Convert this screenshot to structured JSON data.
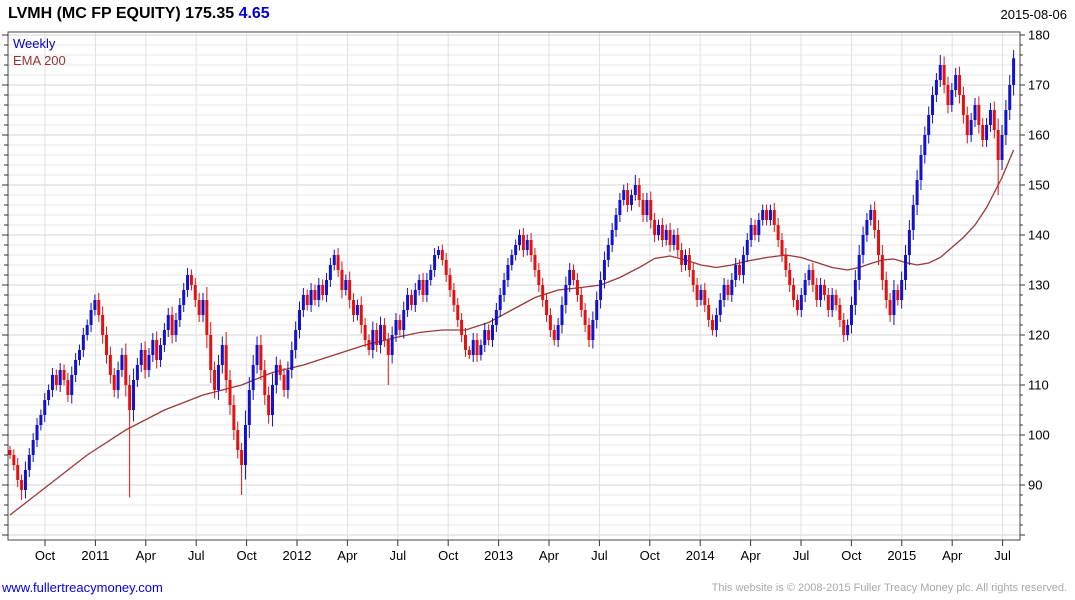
{
  "header": {
    "title_main": "LVMH (MC FP EQUITY) 175.35 ",
    "title_change": "4.65",
    "date": "2015-08-06"
  },
  "legend": {
    "series1": "Weekly",
    "series2": "EMA 200"
  },
  "footer": {
    "link": "www.fullertreacymoney.com",
    "copyright": "This website is © 2008-2015 Fuller Treacy Money plc. All rights reserved."
  },
  "colors": {
    "up": "#1212cc",
    "down": "#e01212",
    "ema": "#993838",
    "grid_minor": "#e7e7e7",
    "grid_major": "#d4d4d4",
    "grid_vert": "#e0e0e0",
    "frame": "#444444",
    "tick": "#333333",
    "axis_text": "#000000"
  },
  "chart_data": {
    "type": "candlestick",
    "title": "LVMH (MC FP EQUITY)",
    "last_price": 175.35,
    "change": 4.65,
    "as_of": "2015-08-06",
    "interval": "Weekly",
    "overlay": "EMA 200",
    "period_start": "2010-08",
    "period_end": "2015-08",
    "y_axis": {
      "position": "right",
      "min": 79,
      "max": 180.6,
      "tick_major": 10,
      "tick_minor": 2,
      "labels": [
        180,
        170,
        160,
        150,
        140,
        130,
        120,
        110,
        100,
        90
      ]
    },
    "x_axis": {
      "labels": [
        "Oct",
        "2011",
        "Apr",
        "Jul",
        "Oct",
        "2012",
        "Apr",
        "Jul",
        "Oct",
        "2013",
        "Apr",
        "Jul",
        "Oct",
        "2014",
        "Apr",
        "Jul",
        "Oct",
        "2015",
        "Apr",
        "Jul"
      ]
    },
    "first_open": 97,
    "closes": [
      96,
      94,
      91,
      89,
      93,
      96,
      99,
      102,
      104,
      107,
      109,
      112,
      110,
      113,
      111,
      108,
      112,
      115,
      117,
      120,
      122,
      125,
      127,
      124,
      120,
      116,
      112,
      109,
      113,
      116,
      110,
      105,
      111,
      114,
      117,
      113,
      116,
      119,
      115,
      118,
      121,
      124,
      120,
      123,
      126,
      129,
      132,
      130,
      127,
      124,
      127,
      120,
      113,
      109,
      114,
      118,
      111,
      106,
      101,
      97,
      94,
      102,
      109,
      114,
      118,
      113,
      108,
      104,
      110,
      114,
      112,
      109,
      113,
      117,
      121,
      125,
      128,
      126,
      129,
      127,
      130,
      128,
      131,
      134,
      136,
      133,
      129,
      131,
      127,
      124,
      126,
      122,
      119,
      117,
      121,
      118,
      122,
      119,
      116,
      120,
      123,
      121,
      125,
      128,
      126,
      129,
      131,
      128,
      131,
      133,
      136,
      137,
      135,
      132,
      129,
      126,
      123,
      120,
      117,
      116,
      119,
      116,
      118,
      121,
      119,
      122,
      125,
      128,
      131,
      134,
      136,
      138,
      140,
      137,
      139,
      136,
      133,
      130,
      127,
      124,
      121,
      119,
      122,
      126,
      130,
      133,
      131,
      128,
      125,
      122,
      119,
      123,
      127,
      131,
      135,
      138,
      141,
      144,
      147,
      149,
      146,
      148,
      150,
      147,
      144,
      147,
      143,
      140,
      142,
      139,
      141,
      138,
      140,
      137,
      134,
      136,
      133,
      130,
      127,
      129,
      126,
      123,
      121,
      124,
      127,
      130,
      128,
      131,
      134,
      132,
      136,
      139,
      142,
      140,
      143,
      145,
      143,
      145,
      142,
      139,
      136,
      133,
      130,
      127,
      125,
      128,
      131,
      133,
      130,
      127,
      130,
      128,
      125,
      128,
      126,
      123,
      120,
      122,
      126,
      131,
      136,
      140,
      143,
      145,
      141,
      136,
      131,
      127,
      124,
      129,
      127,
      131,
      136,
      141,
      146,
      151,
      156,
      160,
      164,
      168,
      171,
      174,
      170,
      166,
      169,
      172,
      168,
      164,
      160,
      163,
      166,
      162,
      159,
      162,
      165,
      161,
      155,
      160,
      165,
      170,
      175.35
    ],
    "wick_overrides": {
      "3": {
        "low": 87
      },
      "31": {
        "low": 87.5
      },
      "60": {
        "low": 88
      },
      "98": {
        "low": 110
      },
      "162": {
        "high": 152
      },
      "241": {
        "high": 176
      },
      "256": {
        "low": 148
      },
      "260": {
        "high": 177
      }
    },
    "ema200_points": [
      [
        0,
        84
      ],
      [
        10,
        90
      ],
      [
        20,
        96
      ],
      [
        30,
        101
      ],
      [
        40,
        105
      ],
      [
        50,
        108
      ],
      [
        60,
        110
      ],
      [
        68,
        112.5
      ],
      [
        76,
        114
      ],
      [
        84,
        116
      ],
      [
        92,
        118
      ],
      [
        100,
        119.5
      ],
      [
        106,
        120.5
      ],
      [
        112,
        121
      ],
      [
        118,
        121
      ],
      [
        124,
        122.5
      ],
      [
        130,
        125
      ],
      [
        136,
        127.5
      ],
      [
        142,
        129
      ],
      [
        148,
        129.5
      ],
      [
        153,
        130
      ],
      [
        158,
        131.5
      ],
      [
        163,
        133.5
      ],
      [
        167,
        135.3
      ],
      [
        171,
        135.8
      ],
      [
        175,
        135
      ],
      [
        179,
        134
      ],
      [
        183,
        133.5
      ],
      [
        187,
        134
      ],
      [
        191,
        134.8
      ],
      [
        196,
        135.5
      ],
      [
        201,
        136
      ],
      [
        205,
        135.5
      ],
      [
        209,
        134.5
      ],
      [
        213,
        133.5
      ],
      [
        217,
        133
      ],
      [
        220,
        133.5
      ],
      [
        223,
        134.3
      ],
      [
        226,
        135
      ],
      [
        229,
        135.2
      ],
      [
        232,
        134.5
      ],
      [
        235,
        134
      ],
      [
        238,
        134.4
      ],
      [
        241,
        135.5
      ],
      [
        244,
        137.5
      ],
      [
        247,
        139.5
      ],
      [
        250,
        142
      ],
      [
        253,
        145.5
      ],
      [
        257,
        151.5
      ],
      [
        260,
        157
      ]
    ]
  }
}
